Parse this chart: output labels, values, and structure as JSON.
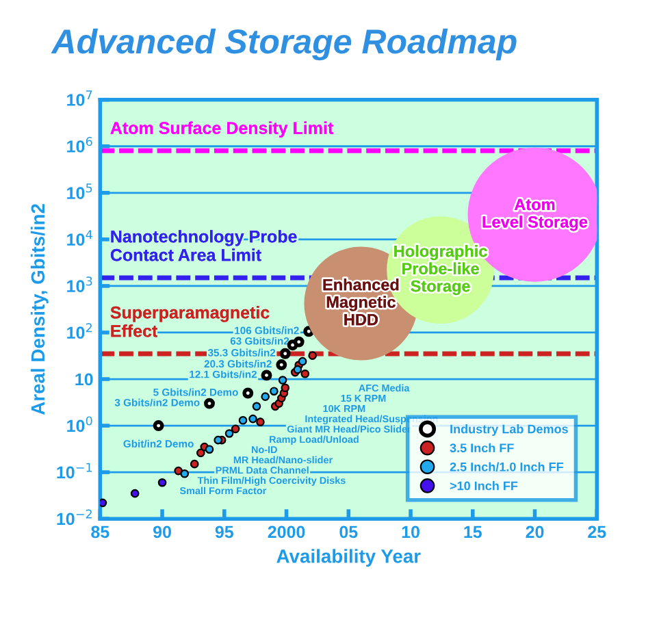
{
  "chart_data": {
    "type": "scatter",
    "title": "Advanced Storage Roadmap",
    "xlabel": "Availability Year",
    "ylabel": "Areal Density, Gbits/in2",
    "log": "y",
    "grid": "y",
    "legend": "bottom right",
    "marker": "circle",
    "xlim": [
      1985,
      2025
    ],
    "ylim": [
      0.01,
      10000000
    ],
    "xticks": [
      {
        "value": 1985,
        "label": "85"
      },
      {
        "value": 1990,
        "label": "90"
      },
      {
        "value": 1995,
        "label": "95"
      },
      {
        "value": 2000,
        "label": "2000"
      },
      {
        "value": 2005,
        "label": "05"
      },
      {
        "value": 2010,
        "label": "10"
      },
      {
        "value": 2015,
        "label": "15"
      },
      {
        "value": 2020,
        "label": "20"
      },
      {
        "value": 2025,
        "label": "25"
      }
    ],
    "yticks": [
      {
        "value": 0.01,
        "label": "10$^{−2}$"
      },
      {
        "value": 0.1,
        "label": "10$^{−1}$"
      },
      {
        "value": 1,
        "label": "10$^{0}$"
      },
      {
        "value": 10,
        "label": "10"
      },
      {
        "value": 100,
        "label": "10$^{2}$"
      },
      {
        "value": 1000,
        "label": "10$^{3}$"
      },
      {
        "value": 10000,
        "label": "10$^{4}$"
      },
      {
        "value": 100000,
        "label": "10$^{5}$"
      },
      {
        "value": 1000000,
        "label": "10$^{6}$"
      },
      {
        "value": 10000000,
        "label": "10$^{7}$"
      }
    ],
    "series": [
      {
        "name": "Industry Lab Demos",
        "color": "#ffffff",
        "x": [
          1989.7,
          1993.8,
          1996.9,
          1998.4,
          1999.6,
          1999.9,
          2000.5,
          2001.0,
          2001.8
        ],
        "values": [
          1,
          3,
          5,
          12.1,
          20.3,
          35.3,
          54,
          63,
          106
        ],
        "value_labels": [
          "Gbit/in2 Demo",
          "3 Gbits/in2 Demo",
          "5 Gbits/in2 Demo",
          "12.1 Gbits/in2",
          "20.3 Gbits/in2",
          "35.3 Gbits/in2",
          null,
          "63 Gbits/in2",
          "106 Gbits/in2"
        ]
      },
      {
        "name": "3.5 Inch FF",
        "color": "#cc2222",
        "x": [
          1991.3,
          1992.6,
          1993.1,
          1993.4,
          1994.8,
          1995.9,
          1997.9,
          1999.1,
          1999.4,
          1999.6,
          1999.8,
          1999.9,
          2000.7,
          2001.0,
          2001.5,
          2002.1
        ],
        "values": [
          0.107,
          0.15,
          0.26,
          0.35,
          0.49,
          0.85,
          1.2,
          2.6,
          3.0,
          3.9,
          5,
          6.5,
          14,
          20,
          13,
          32
        ]
      },
      {
        "name": "2.5 Inch/1.0 Inch FF",
        "color": "#22aaee",
        "x": [
          1991.8,
          1993.8,
          1994.5,
          1995.4,
          1996.5,
          1997.3,
          1997.6,
          1998.3,
          1999.0,
          1999.7,
          2000.9,
          2001.3
        ],
        "values": [
          0.093,
          0.31,
          0.49,
          0.68,
          1.3,
          1.4,
          2.6,
          4.2,
          5.5,
          9.5,
          16,
          24
        ]
      },
      {
        "name": ">10 Inch FF",
        "color": "#4411ee",
        "x": [
          1985.2,
          1987.8,
          1990.0
        ],
        "values": [
          0.022,
          0.035,
          0.06
        ]
      },
      {
        "type": "bubble",
        "x": [
          2006.0,
          2012.4,
          2020.0
        ],
        "values": [
          420,
          2200,
          34000
        ],
        "sizes": [
          0.71,
          0.63,
          1
        ],
        "colors": [
          "#c89070",
          "#ccff99",
          "#ff77ff"
        ],
        "value_labels": [
          "Enhanced\nMagnetic\nHDD",
          "Holographic\nProbe-like\nStorage",
          "Atom\nLevel Storage"
        ]
      }
    ],
    "ref_lines": [
      {
        "axis": "y",
        "value": 800000,
        "label": "Atom Surface Density Limit",
        "color": "#ff00ff",
        "line_style": "dashed"
      },
      {
        "axis": "y",
        "value": 1500,
        "label": "Nanotechnology Probe\nContact Area Limit",
        "color": "#3322ee",
        "line_style": "dashed"
      },
      {
        "axis": "y",
        "value": 35,
        "label": "Superparamagnetic\nEffect",
        "color": "#cc2222",
        "line_style": "dashed"
      }
    ],
    "annotations": [
      "AFC Media",
      "15 K RPM",
      "10K RPM",
      "Integrated Head/Suspension",
      "Giant MR Head/Pico Slider",
      "Ramp Load/Unload",
      "No-ID",
      "MR Head/Nano-slider",
      "PRML Data Channel",
      "Thin Film/High Coercivity Disks",
      "Small Form Factor"
    ]
  }
}
